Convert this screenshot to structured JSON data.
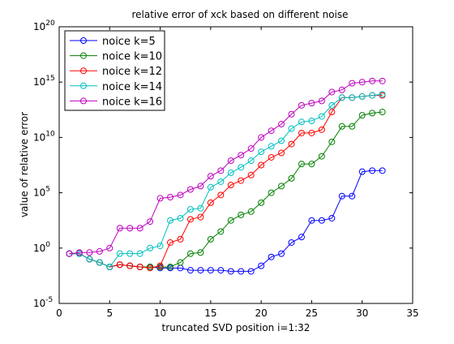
{
  "chart_data": {
    "type": "line",
    "title": "relative error of xck based on different noise",
    "xlabel": "truncated SVD position i=1:32",
    "ylabel": "value of relative error",
    "xlim": [
      0,
      35
    ],
    "ylim_log10": [
      -5,
      20
    ],
    "yscale": "log",
    "xticks": [
      0,
      5,
      10,
      15,
      20,
      25,
      30,
      35
    ],
    "xtick_labels": [
      "0",
      "5",
      "10",
      "15",
      "20",
      "25",
      "30",
      "35"
    ],
    "yticks_log10": [
      -5,
      0,
      5,
      10,
      15,
      20
    ],
    "ytick_bases": [
      "10",
      "10",
      "10",
      "10",
      "10",
      "10"
    ],
    "ytick_exponents": [
      "-5",
      "0",
      "5",
      "10",
      "15",
      "20"
    ],
    "legend_position": "top-left",
    "x": [
      1,
      2,
      3,
      4,
      5,
      6,
      7,
      8,
      9,
      10,
      11,
      12,
      13,
      14,
      15,
      16,
      17,
      18,
      19,
      20,
      21,
      22,
      23,
      24,
      25,
      26,
      27,
      28,
      29,
      30,
      31,
      32
    ],
    "series": [
      {
        "name": "noice k=5",
        "color": "#0000ff",
        "log10_values": [
          -0.5,
          -0.5,
          -1.0,
          -1.3,
          -1.7,
          -1.5,
          -1.6,
          -1.7,
          -1.7,
          -1.8,
          -1.8,
          -1.8,
          -2.0,
          -2.0,
          -2.0,
          -2.0,
          -2.1,
          -2.1,
          -2.1,
          -1.6,
          -0.8,
          -0.5,
          0.5,
          1.0,
          2.5,
          2.5,
          2.7,
          4.7,
          4.7,
          6.9,
          7.0,
          7.0
        ]
      },
      {
        "name": "noice k=10",
        "color": "#008000",
        "log10_values": [
          -0.5,
          -0.5,
          -1.0,
          -1.3,
          -1.7,
          -1.5,
          -1.6,
          -1.7,
          -1.7,
          -1.7,
          -1.7,
          -1.3,
          -0.5,
          -0.4,
          0.8,
          1.5,
          2.5,
          3.0,
          3.3,
          4.1,
          5.0,
          5.6,
          6.3,
          7.6,
          7.6,
          8.3,
          9.6,
          11.0,
          11.0,
          12.0,
          12.2,
          12.3
        ]
      },
      {
        "name": "noice k=12",
        "color": "#ff0000",
        "log10_values": [
          -0.5,
          -0.5,
          -1.0,
          -1.3,
          -1.7,
          -1.5,
          -1.6,
          -1.7,
          -1.8,
          -1.6,
          0.5,
          0.8,
          2.6,
          2.8,
          4.1,
          4.8,
          5.7,
          6.1,
          6.6,
          7.5,
          8.2,
          8.6,
          9.4,
          10.4,
          10.4,
          10.7,
          12.3,
          13.6,
          13.6,
          13.7,
          13.8,
          13.8
        ]
      },
      {
        "name": "noice k=14",
        "color": "#00bfbf",
        "log10_values": [
          -0.5,
          -0.5,
          -1.0,
          -1.3,
          -1.7,
          -0.5,
          -0.5,
          -0.5,
          0.0,
          0.2,
          2.5,
          2.7,
          3.5,
          3.6,
          5.5,
          6.0,
          6.8,
          7.3,
          7.9,
          8.7,
          9.2,
          9.7,
          10.8,
          11.4,
          11.5,
          11.9,
          12.9,
          13.6,
          13.6,
          13.7,
          13.8,
          13.9
        ]
      },
      {
        "name": "noice k=16",
        "color": "#bf00bf",
        "log10_values": [
          -0.5,
          -0.4,
          -0.4,
          -0.3,
          0.0,
          1.8,
          1.8,
          1.8,
          2.4,
          4.5,
          4.6,
          4.8,
          5.3,
          5.6,
          6.5,
          7.0,
          7.9,
          8.4,
          9.0,
          10.0,
          10.6,
          11.2,
          12.1,
          12.9,
          13.1,
          13.3,
          14.1,
          14.3,
          14.9,
          15.0,
          15.1,
          15.1
        ]
      }
    ]
  }
}
